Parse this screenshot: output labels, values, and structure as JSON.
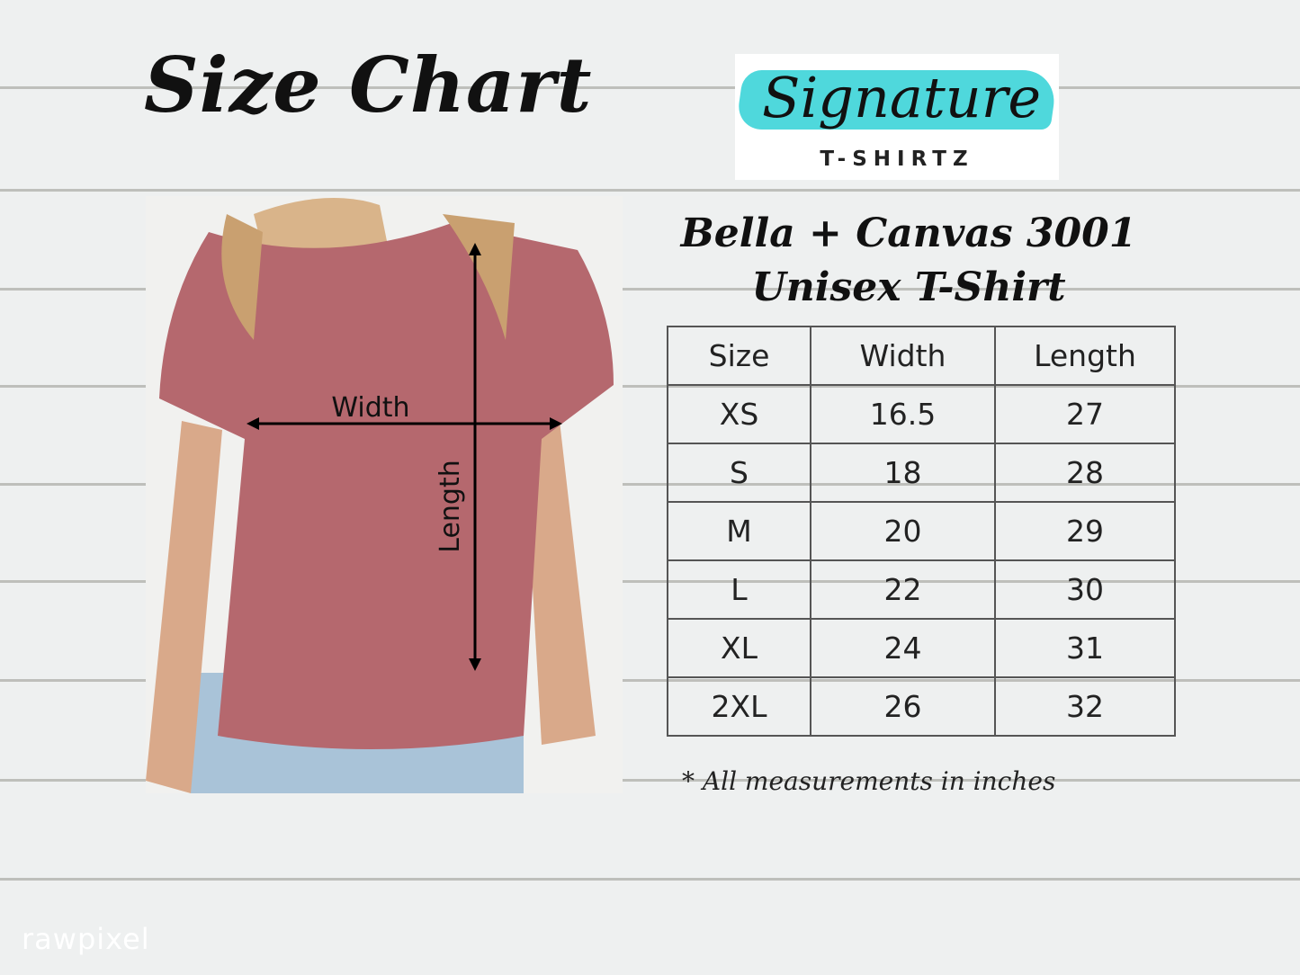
{
  "header": {
    "title": "Size Chart"
  },
  "logo": {
    "name": "Signature",
    "tagline": "T-SHIRTZ",
    "accent": "#4fd8dc"
  },
  "photo": {
    "width_label": "Width",
    "length_label": "Length",
    "shirt_color": "#b5686e"
  },
  "product": {
    "line1": "Bella + Canvas 3001",
    "line2": "Unisex T-Shirt"
  },
  "table": {
    "headers": [
      "Size",
      "Width",
      "Length"
    ],
    "rows": [
      [
        "XS",
        "16.5",
        "27"
      ],
      [
        "S",
        "18",
        "28"
      ],
      [
        "M",
        "20",
        "29"
      ],
      [
        "L",
        "22",
        "30"
      ],
      [
        "XL",
        "24",
        "31"
      ],
      [
        "2XL",
        "26",
        "32"
      ]
    ]
  },
  "note": "* All measurements in inches",
  "watermark": "rawpixel"
}
